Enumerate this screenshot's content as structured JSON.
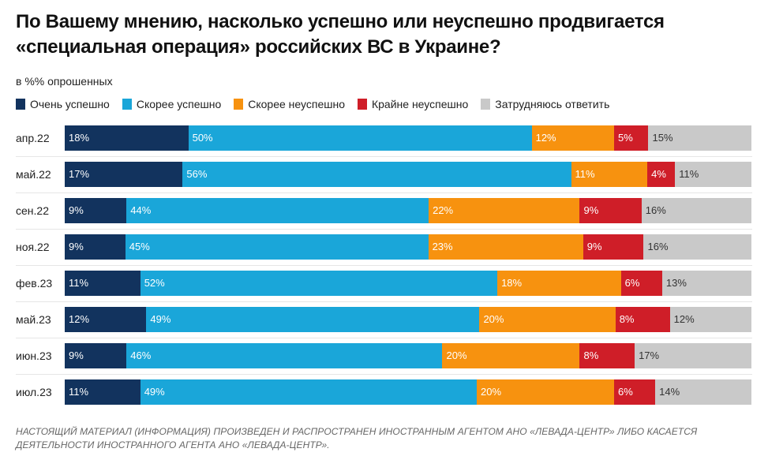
{
  "title": "По Вашему мнению, насколько успешно или неуспешно продвигается «специальная операция» российских ВС в Украине?",
  "subtitle": "в %% опрошенных",
  "footer": "НАСТОЯЩИЙ МАТЕРИАЛ (ИНФОРМАЦИЯ) ПРОИЗВЕДЕН И РАСПРОСТРАНЕН ИНОСТРАННЫМ АГЕНТОМ АНО «ЛЕВАДА-ЦЕНТР» ЛИБО КАСАЕТСЯ ДЕЯТЕЛЬНОСТИ ИНОСТРАННОГО АГЕНТА АНО «ЛЕВАДА-ЦЕНТР».",
  "colors": {
    "very_success": "#12335e",
    "rather_success": "#1aa6d9",
    "rather_fail": "#f7920f",
    "very_fail": "#cf1e28",
    "hard_to_say": "#c9c9c9"
  },
  "chart_data": {
    "type": "bar",
    "orientation": "horizontal",
    "stacked": true,
    "percent_suffix": "%",
    "categories": [
      "апр.22",
      "май.22",
      "сен.22",
      "ноя.22",
      "фев.23",
      "май.23",
      "июн.23",
      "июл.23"
    ],
    "series": [
      {
        "name": "Очень успешно",
        "color": "#12335e",
        "label_color": "#ffffff",
        "values": [
          18,
          17,
          9,
          9,
          11,
          12,
          9,
          11
        ]
      },
      {
        "name": "Скорее успешно",
        "color": "#1aa6d9",
        "label_color": "#ffffff",
        "values": [
          50,
          56,
          44,
          45,
          52,
          49,
          46,
          49
        ]
      },
      {
        "name": "Скорее неуспешно",
        "color": "#f7920f",
        "label_color": "#ffffff",
        "values": [
          12,
          11,
          22,
          23,
          18,
          20,
          20,
          20
        ]
      },
      {
        "name": "Крайне неуспешно",
        "color": "#cf1e28",
        "label_color": "#ffffff",
        "values": [
          5,
          4,
          9,
          9,
          6,
          8,
          8,
          6
        ]
      },
      {
        "name": "Затрудняюсь ответить",
        "color": "#c9c9c9",
        "label_color": "#333333",
        "values": [
          15,
          11,
          16,
          16,
          13,
          12,
          17,
          14
        ]
      }
    ],
    "legend": "top-left",
    "grid": false
  }
}
